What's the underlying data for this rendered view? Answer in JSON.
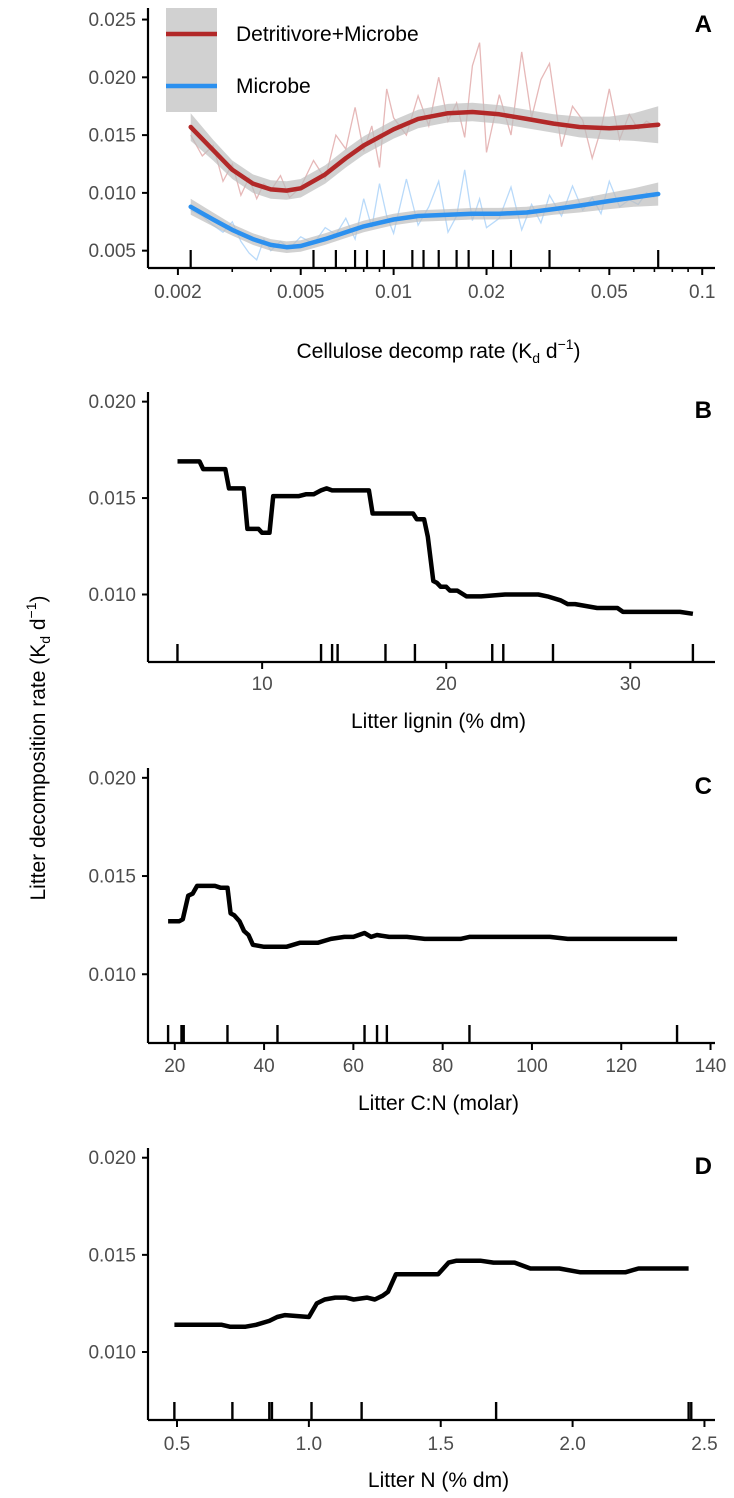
{
  "shared_ylabel": "Litter decomposition rate (K",
  "shared_ylabel_sub": "d",
  "shared_ylabel_tail": " d",
  "shared_ylabel_sup": "−1",
  "shared_ylabel_close": ")",
  "colors": {
    "detritivore": "#b22828",
    "microbe": "#2b90ef",
    "ribbon": "#bdbdbd",
    "axis": "#000000",
    "ticktext": "#4d4d4d"
  },
  "chart_data": [
    {
      "panel": "A",
      "type": "line",
      "xscale": "log",
      "xlabel": "Cellulose decomp rate (K",
      "xlabel_sub": "d",
      "xlabel_tail": " d",
      "xlabel_sup": "−1",
      "xlabel_close": ")",
      "ylabel": "",
      "xlim": [
        0.0016,
        0.11
      ],
      "ylim": [
        0.0035,
        0.026
      ],
      "x_ticks": [
        0.002,
        0.005,
        0.01,
        0.02,
        0.05,
        0.1
      ],
      "x_tick_labels": [
        "0.002",
        "0.005",
        "0.01",
        "0.02",
        "0.05",
        "0.1"
      ],
      "y_ticks": [
        0.005,
        0.01,
        0.015,
        0.02,
        0.025
      ],
      "y_tick_labels": [
        "0.005",
        "0.010",
        "0.015",
        "0.020",
        "0.025"
      ],
      "legend": {
        "position": "top-left",
        "entries": [
          "Detritivore+Microbe",
          "Microbe"
        ]
      },
      "rug": [
        0.0022,
        0.0055,
        0.0065,
        0.0075,
        0.0082,
        0.0093,
        0.0115,
        0.0125,
        0.014,
        0.016,
        0.0175,
        0.021,
        0.024,
        0.032,
        0.072
      ],
      "series": [
        {
          "name": "Detritivore+Microbe",
          "color": "#b22828",
          "smooth": {
            "x": [
              0.0022,
              0.0026,
              0.003,
              0.0035,
              0.004,
              0.0045,
              0.005,
              0.006,
              0.007,
              0.008,
              0.01,
              0.012,
              0.015,
              0.018,
              0.022,
              0.027,
              0.033,
              0.04,
              0.05,
              0.06,
              0.072
            ],
            "y": [
              0.0157,
              0.0137,
              0.012,
              0.0108,
              0.0103,
              0.0102,
              0.0104,
              0.0116,
              0.013,
              0.0141,
              0.0155,
              0.0164,
              0.0169,
              0.017,
              0.0168,
              0.0164,
              0.016,
              0.0157,
              0.0156,
              0.0157,
              0.0159
            ]
          },
          "band": [
            0.0012,
            0.0009,
            0.0008,
            0.0008,
            0.0008,
            0.0008,
            0.0008,
            0.0008,
            0.0008,
            0.0008,
            0.0008,
            0.0008,
            0.0008,
            0.0008,
            0.0008,
            0.0008,
            0.0008,
            0.0009,
            0.001,
            0.0012,
            0.0016
          ],
          "raw": {
            "x": [
              0.0022,
              0.0024,
              0.0026,
              0.0028,
              0.003,
              0.0032,
              0.0034,
              0.0036,
              0.0038,
              0.004,
              0.0043,
              0.0046,
              0.005,
              0.0055,
              0.006,
              0.0065,
              0.007,
              0.0075,
              0.008,
              0.0085,
              0.009,
              0.0095,
              0.01,
              0.011,
              0.012,
              0.013,
              0.014,
              0.015,
              0.016,
              0.017,
              0.018,
              0.019,
              0.02,
              0.022,
              0.024,
              0.026,
              0.028,
              0.03,
              0.032,
              0.035,
              0.038,
              0.041,
              0.044,
              0.047,
              0.05,
              0.054,
              0.058,
              0.062,
              0.066,
              0.07
            ],
            "y": [
              0.015,
              0.0132,
              0.0141,
              0.011,
              0.0125,
              0.0098,
              0.0113,
              0.0095,
              0.0108,
              0.0102,
              0.0115,
              0.0096,
              0.0105,
              0.0128,
              0.0112,
              0.015,
              0.0138,
              0.0174,
              0.0136,
              0.0158,
              0.0122,
              0.019,
              0.0165,
              0.015,
              0.0184,
              0.0158,
              0.02,
              0.0162,
              0.0178,
              0.0148,
              0.021,
              0.023,
              0.0135,
              0.0185,
              0.015,
              0.0222,
              0.0165,
              0.0198,
              0.0212,
              0.014,
              0.0175,
              0.0163,
              0.013,
              0.0155,
              0.019,
              0.0146,
              0.0168,
              0.0155,
              0.0162,
              0.0158
            ]
          }
        },
        {
          "name": "Microbe",
          "color": "#2b90ef",
          "smooth": {
            "x": [
              0.0022,
              0.0026,
              0.003,
              0.0035,
              0.004,
              0.0045,
              0.005,
              0.006,
              0.007,
              0.008,
              0.01,
              0.012,
              0.015,
              0.018,
              0.022,
              0.027,
              0.033,
              0.04,
              0.05,
              0.06,
              0.072
            ],
            "y": [
              0.0088,
              0.0077,
              0.0068,
              0.006,
              0.0055,
              0.0053,
              0.0054,
              0.006,
              0.0066,
              0.0071,
              0.0077,
              0.008,
              0.0081,
              0.0082,
              0.0082,
              0.0083,
              0.0086,
              0.0089,
              0.0093,
              0.0096,
              0.0099
            ]
          },
          "band": [
            0.0007,
            0.0006,
            0.0005,
            0.0005,
            0.0005,
            0.0005,
            0.0005,
            0.0005,
            0.0005,
            0.0005,
            0.0005,
            0.0005,
            0.0005,
            0.0005,
            0.0005,
            0.0005,
            0.0005,
            0.0006,
            0.0007,
            0.0008,
            0.001
          ],
          "raw": {
            "x": [
              0.0022,
              0.0024,
              0.0026,
              0.0028,
              0.003,
              0.0032,
              0.0034,
              0.0036,
              0.0038,
              0.004,
              0.0043,
              0.0046,
              0.005,
              0.0055,
              0.006,
              0.0065,
              0.007,
              0.0075,
              0.008,
              0.0085,
              0.009,
              0.0095,
              0.01,
              0.011,
              0.012,
              0.013,
              0.014,
              0.015,
              0.016,
              0.017,
              0.018,
              0.019,
              0.02,
              0.022,
              0.024,
              0.026,
              0.028,
              0.03,
              0.032,
              0.035,
              0.038,
              0.041,
              0.044,
              0.047,
              0.05,
              0.054,
              0.058,
              0.062,
              0.066,
              0.07
            ],
            "y": [
              0.0085,
              0.008,
              0.0072,
              0.0066,
              0.0075,
              0.0058,
              0.0048,
              0.0042,
              0.006,
              0.005,
              0.0058,
              0.0052,
              0.0062,
              0.0056,
              0.007,
              0.0064,
              0.0078,
              0.006,
              0.0095,
              0.007,
              0.0108,
              0.008,
              0.0065,
              0.0112,
              0.0072,
              0.0088,
              0.011,
              0.0066,
              0.008,
              0.012,
              0.0076,
              0.0095,
              0.007,
              0.0078,
              0.0105,
              0.0068,
              0.009,
              0.0074,
              0.0098,
              0.008,
              0.0106,
              0.0085,
              0.0096,
              0.0082,
              0.011,
              0.0088,
              0.0094,
              0.009,
              0.01,
              0.0096
            ]
          }
        }
      ]
    },
    {
      "panel": "B",
      "type": "line",
      "xlabel": "Litter lignin (% dm)",
      "ylabel": "",
      "xlim": [
        3.8,
        34.6
      ],
      "ylim": [
        0.0065,
        0.0205
      ],
      "x_ticks": [
        10,
        20,
        30
      ],
      "x_tick_labels": [
        "10",
        "20",
        "30"
      ],
      "y_ticks": [
        0.01,
        0.015,
        0.02
      ],
      "y_tick_labels": [
        "0.010",
        "0.015",
        "0.020"
      ],
      "rug": [
        5.4,
        13.2,
        13.8,
        14.1,
        16.7,
        18.3,
        22.5,
        23.1,
        25.8,
        33.4
      ],
      "series": [
        {
          "name": "",
          "x": [
            5.4,
            6.6,
            6.8,
            8.0,
            8.2,
            9.0,
            9.2,
            9.8,
            10.0,
            10.4,
            10.6,
            12.0,
            12.4,
            12.8,
            13.2,
            13.5,
            13.8,
            14.8,
            15.8,
            16.0,
            17.2,
            17.4,
            18.2,
            18.4,
            18.8,
            19.0,
            19.3,
            19.5,
            19.7,
            20.0,
            20.2,
            20.6,
            21.1,
            21.4,
            21.9,
            23.2,
            24.3,
            25.0,
            25.5,
            26.2,
            26.6,
            27.0,
            28.2,
            29.3,
            29.6,
            30.6,
            31.8,
            32.7,
            33.4
          ],
          "y": [
            0.0169,
            0.0169,
            0.0165,
            0.0165,
            0.0155,
            0.0155,
            0.0134,
            0.0134,
            0.0132,
            0.0132,
            0.0151,
            0.0151,
            0.0152,
            0.0152,
            0.0154,
            0.0155,
            0.0154,
            0.0154,
            0.0154,
            0.0142,
            0.0142,
            0.0142,
            0.0142,
            0.0139,
            0.0139,
            0.013,
            0.0107,
            0.0106,
            0.0104,
            0.0104,
            0.0102,
            0.0102,
            0.0099,
            0.0099,
            0.0099,
            0.01,
            0.01,
            0.01,
            0.0099,
            0.0097,
            0.0095,
            0.0095,
            0.0093,
            0.0093,
            0.0091,
            0.0091,
            0.0091,
            0.0091,
            0.009
          ]
        }
      ]
    },
    {
      "panel": "C",
      "type": "line",
      "xlabel": "Litter C:N (molar)",
      "ylabel": "",
      "xlim": [
        14,
        141
      ],
      "ylim": [
        0.0065,
        0.0205
      ],
      "x_ticks": [
        20,
        40,
        60,
        80,
        100,
        120,
        140
      ],
      "x_tick_labels": [
        "20",
        "40",
        "60",
        "80",
        "100",
        "120",
        "140"
      ],
      "y_ticks": [
        0.01,
        0.015,
        0.02
      ],
      "y_tick_labels": [
        "0.010",
        "0.015",
        "0.020"
      ],
      "rug": [
        18.5,
        21.5,
        22,
        31.8,
        43,
        62.5,
        65.3,
        67.5,
        86,
        132.5
      ],
      "series": [
        {
          "name": "",
          "x": [
            18.5,
            21,
            21.8,
            23,
            24,
            25,
            27.3,
            29,
            30.3,
            31.8,
            32.5,
            33.3,
            34.5,
            35.5,
            36.5,
            37.5,
            40,
            43,
            45,
            48,
            52,
            55,
            58,
            60,
            62.5,
            64,
            65.3,
            68,
            72,
            76,
            80,
            84,
            86,
            90,
            100,
            104,
            108,
            120,
            132.5
          ],
          "y": [
            0.0127,
            0.0127,
            0.0128,
            0.014,
            0.0141,
            0.0145,
            0.0145,
            0.0145,
            0.0144,
            0.0144,
            0.0131,
            0.013,
            0.0127,
            0.0122,
            0.012,
            0.0115,
            0.0114,
            0.0114,
            0.0114,
            0.0116,
            0.0116,
            0.0118,
            0.0119,
            0.0119,
            0.0121,
            0.0119,
            0.012,
            0.0119,
            0.0119,
            0.0118,
            0.0118,
            0.0118,
            0.0119,
            0.0119,
            0.0119,
            0.0119,
            0.0118,
            0.0118,
            0.0118
          ]
        }
      ]
    },
    {
      "panel": "D",
      "type": "line",
      "xlabel": "Litter N (% dm)",
      "ylabel": "",
      "xlim": [
        0.39,
        2.54
      ],
      "ylim": [
        0.0065,
        0.0205
      ],
      "x_ticks": [
        0.5,
        1.0,
        1.5,
        2.0,
        2.5
      ],
      "x_tick_labels": [
        "0.5",
        "1.0",
        "1.5",
        "2.0",
        "2.5"
      ],
      "y_ticks": [
        0.01,
        0.015,
        0.02
      ],
      "y_tick_labels": [
        "0.010",
        "0.015",
        "0.020"
      ],
      "rug": [
        0.49,
        0.71,
        0.85,
        0.86,
        1.01,
        1.2,
        1.71,
        2.44,
        2.45
      ],
      "series": [
        {
          "name": "",
          "x": [
            0.49,
            0.67,
            0.7,
            0.76,
            0.8,
            0.85,
            0.88,
            0.91,
            1.0,
            1.03,
            1.06,
            1.1,
            1.14,
            1.17,
            1.22,
            1.25,
            1.28,
            1.3,
            1.33,
            1.39,
            1.49,
            1.53,
            1.56,
            1.65,
            1.7,
            1.78,
            1.84,
            1.91,
            1.95,
            2.03,
            2.14,
            2.2,
            2.25,
            2.44
          ],
          "y": [
            0.0114,
            0.0114,
            0.0113,
            0.0113,
            0.0114,
            0.0116,
            0.0118,
            0.0119,
            0.0118,
            0.0125,
            0.0127,
            0.0128,
            0.0128,
            0.0127,
            0.0128,
            0.0127,
            0.0129,
            0.0131,
            0.014,
            0.014,
            0.014,
            0.0146,
            0.0147,
            0.0147,
            0.0146,
            0.0146,
            0.0143,
            0.0143,
            0.0143,
            0.0141,
            0.0141,
            0.0141,
            0.0143,
            0.0143
          ]
        }
      ]
    }
  ]
}
